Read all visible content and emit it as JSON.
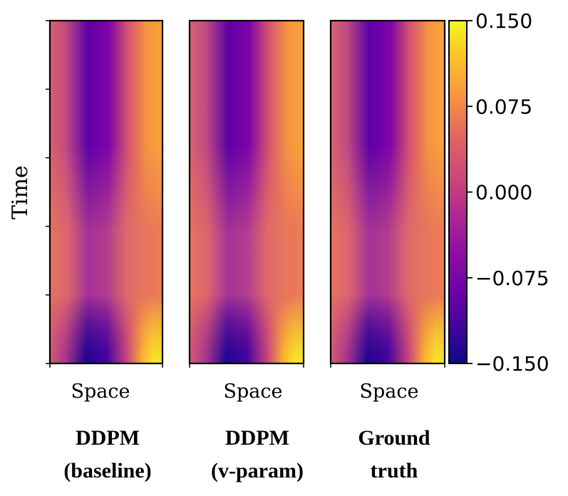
{
  "chart_data": {
    "type": "heatmap",
    "ylabel": "Time",
    "colormap": "plasma",
    "value_range": [
      -0.15,
      0.15
    ],
    "colorbar": {
      "ticks": [
        0.15,
        0.075,
        0.0,
        -0.075,
        -0.15
      ],
      "tick_labels": [
        "0.150",
        "0.075",
        "0.000",
        "−0.075",
        "−0.150"
      ]
    },
    "panels": [
      {
        "xlabel": "Space",
        "title_lines": [
          "DDPM",
          "(baseline)"
        ]
      },
      {
        "xlabel": "Space",
        "title_lines": [
          "DDPM",
          "(v-param)"
        ]
      },
      {
        "xlabel": "Space",
        "title_lines": [
          "Ground",
          "truth"
        ]
      }
    ]
  }
}
